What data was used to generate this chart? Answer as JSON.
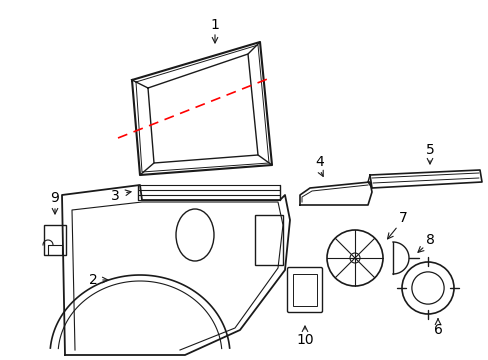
{
  "bg_color": "#ffffff",
  "line_color": "#1a1a1a",
  "red_dash_color": "#ff0000",
  "figsize": [
    4.89,
    3.6
  ],
  "dpi": 100
}
